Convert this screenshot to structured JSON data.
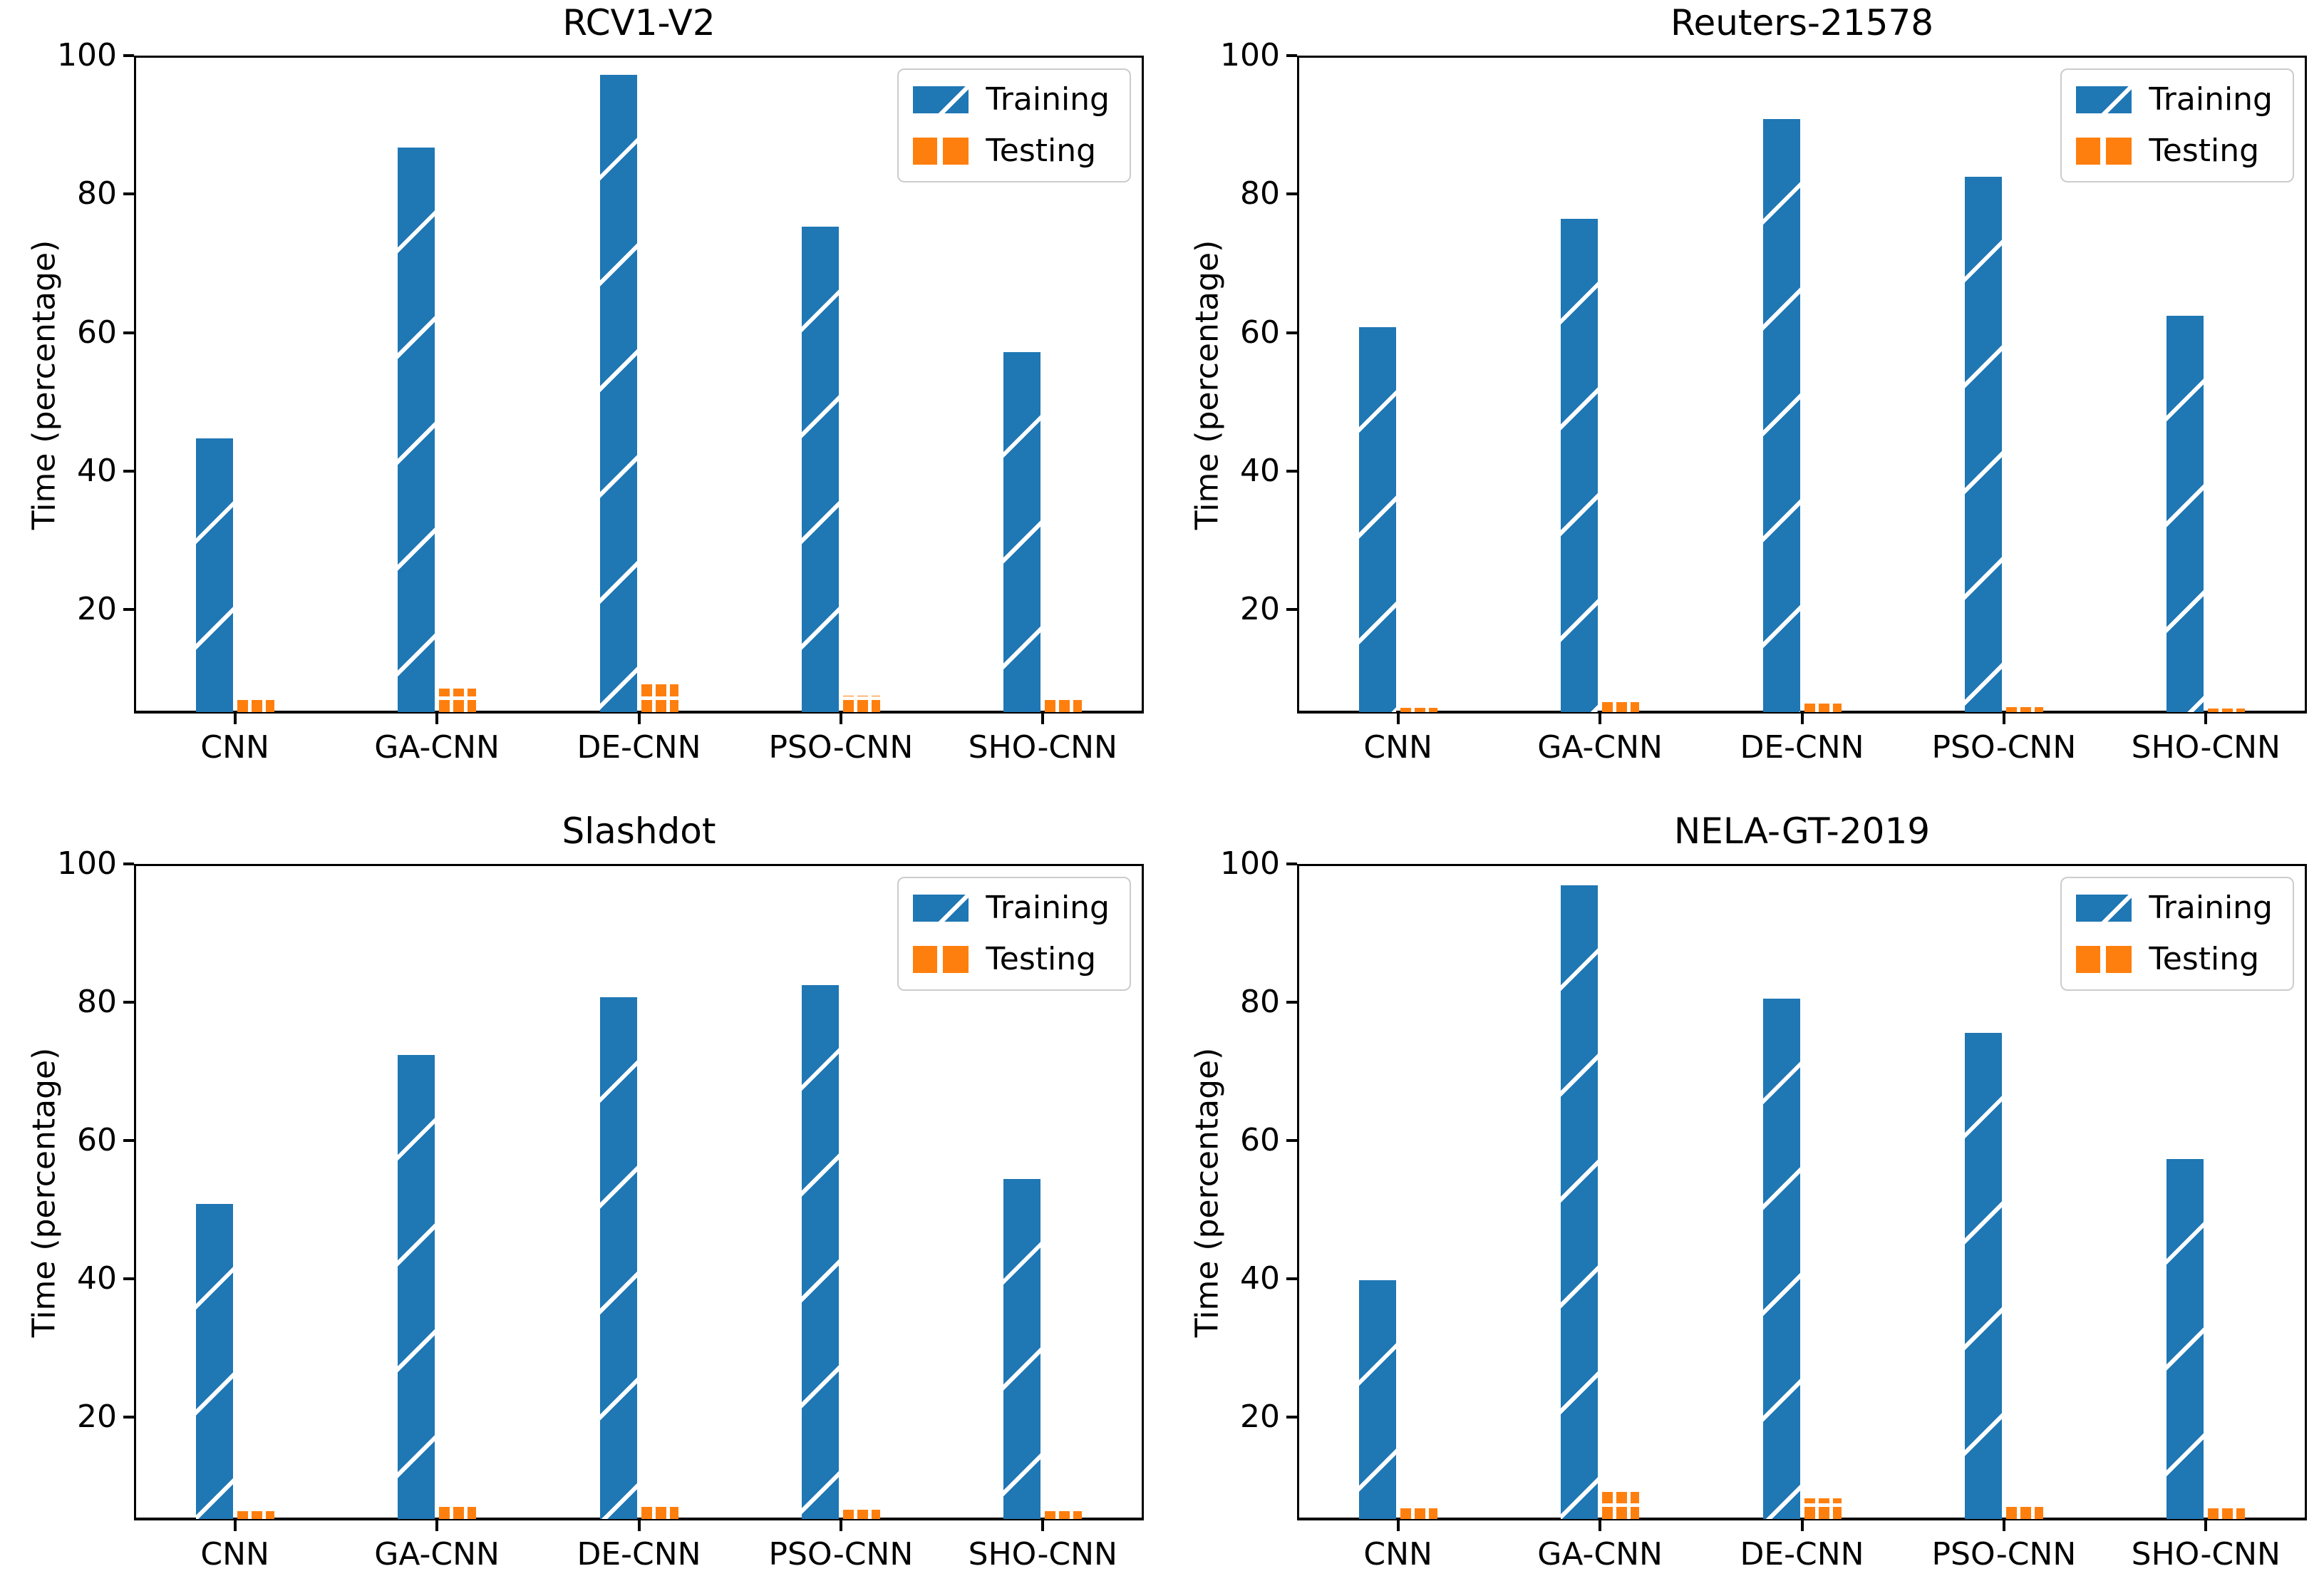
{
  "figure": {
    "background": "#ffffff"
  },
  "colors": {
    "training": "#1f77b4",
    "testing": "#ff7f0e",
    "spine": "#000000",
    "legend_border": "#cccccc",
    "text": "#000000"
  },
  "legend": {
    "position": "upper right",
    "items": [
      {
        "label": "Training",
        "series": "training",
        "hatch": "/"
      },
      {
        "label": "Testing",
        "series": "testing",
        "hatch": "+"
      }
    ]
  },
  "chart_data": [
    {
      "type": "bar",
      "title": "RCV1-V2",
      "categories": [
        "CNN",
        "GA-CNN",
        "DE-CNN",
        "PSO-CNN",
        "SHO-CNN"
      ],
      "series": [
        {
          "name": "Training",
          "values": [
            44.5,
            86.5,
            97.0,
            75.1,
            57.0
          ]
        },
        {
          "name": "Testing",
          "values": [
            6.8,
            8.4,
            9.1,
            7.4,
            6.7
          ]
        }
      ],
      "xlabel": "",
      "ylabel": "Time (percentage)",
      "ylim": [
        5,
        100
      ],
      "yticks": [
        20,
        40,
        60,
        80,
        100
      ],
      "grid": false,
      "legend_position": "upper right"
    },
    {
      "type": "bar",
      "title": "Reuters-21578",
      "categories": [
        "CNN",
        "GA-CNN",
        "DE-CNN",
        "PSO-CNN",
        "SHO-CNN"
      ],
      "series": [
        {
          "name": "Training",
          "values": [
            60.6,
            76.2,
            90.6,
            82.3,
            62.2
          ]
        },
        {
          "name": "Testing",
          "values": [
            5.6,
            6.4,
            6.2,
            5.7,
            5.5
          ]
        }
      ],
      "xlabel": "",
      "ylabel": "Time (percentage)",
      "ylim": [
        5,
        100
      ],
      "yticks": [
        20,
        40,
        60,
        80,
        100
      ],
      "grid": false,
      "legend_position": "upper right"
    },
    {
      "type": "bar",
      "title": "Slashdot",
      "categories": [
        "CNN",
        "GA-CNN",
        "DE-CNN",
        "PSO-CNN",
        "SHO-CNN"
      ],
      "series": [
        {
          "name": "Training",
          "values": [
            50.6,
            72.2,
            80.5,
            82.3,
            54.2
          ]
        },
        {
          "name": "Testing",
          "values": [
            6.1,
            7.2,
            6.9,
            6.3,
            6.1
          ]
        }
      ],
      "xlabel": "",
      "ylabel": "Time (percentage)",
      "ylim": [
        5,
        100
      ],
      "yticks": [
        20,
        40,
        60,
        80,
        100
      ],
      "grid": false,
      "legend_position": "upper right"
    },
    {
      "type": "bar",
      "title": "NELA-GT-2019",
      "categories": [
        "CNN",
        "GA-CNN",
        "DE-CNN",
        "PSO-CNN",
        "SHO-CNN"
      ],
      "series": [
        {
          "name": "Training",
          "values": [
            39.6,
            96.7,
            80.3,
            75.4,
            57.1
          ]
        },
        {
          "name": "Testing",
          "values": [
            6.5,
            8.9,
            8.0,
            7.1,
            6.5
          ]
        }
      ],
      "xlabel": "",
      "ylabel": "Time (percentage)",
      "ylim": [
        5,
        100
      ],
      "yticks": [
        20,
        40,
        60,
        80,
        100
      ],
      "grid": false,
      "legend_position": "upper right"
    }
  ]
}
